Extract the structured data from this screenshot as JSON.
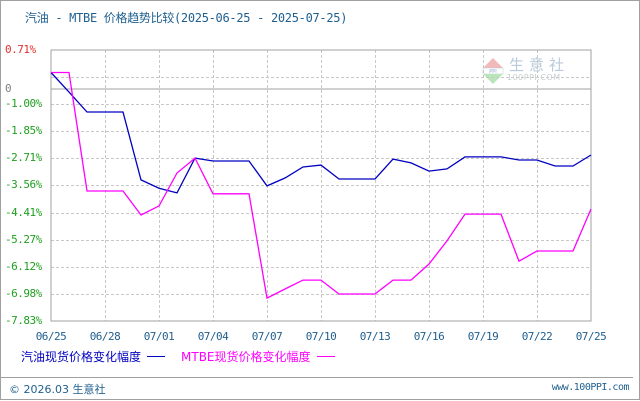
{
  "title": "汽油 - MTBE 价格趋势比较(2025-06-25 - 2025-07-25)",
  "watermark": {
    "brand": "生意社",
    "sub": "100PPI.COM"
  },
  "y_axis": {
    "top_label": "0.71%",
    "zero_label": "0",
    "labels": [
      "-1.00%",
      "-1.85%",
      "-2.71%",
      "-3.56%",
      "-4.41%",
      "-5.27%",
      "-6.12%",
      "-6.98%",
      "-7.83%"
    ],
    "positive_color": "#e03030",
    "negative_color": "#20a020",
    "zero_color": "#808080"
  },
  "x_axis": {
    "labels": [
      "06/25",
      "06/28",
      "07/01",
      "07/04",
      "07/07",
      "07/10",
      "07/13",
      "07/16",
      "07/19",
      "07/22",
      "07/25"
    ]
  },
  "legend": [
    {
      "label": "汽油现货价格变化幅度",
      "color": "#0000c0"
    },
    {
      "label": "MTBE现货价格变化幅度",
      "color": "#ff00ff"
    }
  ],
  "footer": {
    "copyright": "© 2026.03 生意社",
    "site": "www.100PPI.com"
  },
  "chart_data": {
    "type": "line",
    "title": "汽油 - MTBE 价格趋势比较(2025-06-25 - 2025-07-25)",
    "xlabel": "",
    "ylabel": "",
    "ylim": [
      -7.83,
      0.71
    ],
    "yticks": [
      0.71,
      0,
      -1.0,
      -1.85,
      -2.71,
      -3.56,
      -4.41,
      -5.27,
      -6.12,
      -6.98,
      -7.83
    ],
    "grid": true,
    "legend_position": "bottom",
    "x": [
      "06/25",
      "06/26",
      "06/27",
      "06/28",
      "06/29",
      "06/30",
      "07/01",
      "07/02",
      "07/03",
      "07/04",
      "07/05",
      "07/06",
      "07/07",
      "07/08",
      "07/09",
      "07/10",
      "07/11",
      "07/12",
      "07/13",
      "07/14",
      "07/15",
      "07/16",
      "07/17",
      "07/18",
      "07/19",
      "07/20",
      "07/21",
      "07/22",
      "07/23",
      "07/24",
      "07/25"
    ],
    "series": [
      {
        "name": "汽油现货价格变化幅度",
        "color": "#0000c0",
        "values": [
          0,
          -0.62,
          -1.25,
          -1.25,
          -1.25,
          -3.4,
          -3.66,
          -3.81,
          -2.71,
          -2.8,
          -2.8,
          -2.8,
          -3.59,
          -3.34,
          -2.99,
          -2.93,
          -3.37,
          -3.37,
          -3.37,
          -2.74,
          -2.86,
          -3.12,
          -3.05,
          -2.67,
          -2.67,
          -2.67,
          -2.77,
          -2.77,
          -2.96,
          -2.96,
          -2.61
        ]
      },
      {
        "name": "MTBE现货价格变化幅度",
        "color": "#ff00ff",
        "values": [
          0,
          0,
          -3.75,
          -3.75,
          -3.75,
          -4.51,
          -4.22,
          -3.18,
          -2.71,
          -3.84,
          -3.84,
          -3.84,
          -7.14,
          -6.85,
          -6.57,
          -6.57,
          -7.01,
          -7.01,
          -7.01,
          -6.57,
          -6.57,
          -6.06,
          -5.33,
          -4.48,
          -4.48,
          -4.48,
          -5.97,
          -5.65,
          -5.65,
          -5.65,
          -4.32
        ]
      }
    ]
  }
}
